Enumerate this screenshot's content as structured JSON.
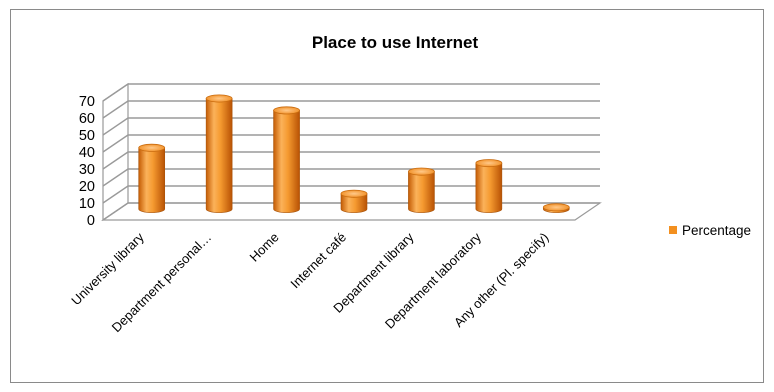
{
  "chart_data": {
    "type": "bar",
    "style": "3d-cylinder",
    "title": "Place to use  Internet",
    "xlabel": "",
    "ylabel": "",
    "categories": [
      "University library",
      "Department personal…",
      "Home",
      "Internet café",
      "Department library",
      "Department laboratory",
      "Any other (Pl. specify)"
    ],
    "series": [
      {
        "name": "Percentage",
        "color": "#f39020",
        "values": [
          36,
          65,
          58,
          9,
          22,
          27,
          1
        ]
      }
    ],
    "ylim": [
      0,
      70
    ],
    "yticks": [
      0,
      10,
      20,
      30,
      40,
      50,
      60,
      70
    ],
    "grid": true,
    "legend": "right"
  }
}
